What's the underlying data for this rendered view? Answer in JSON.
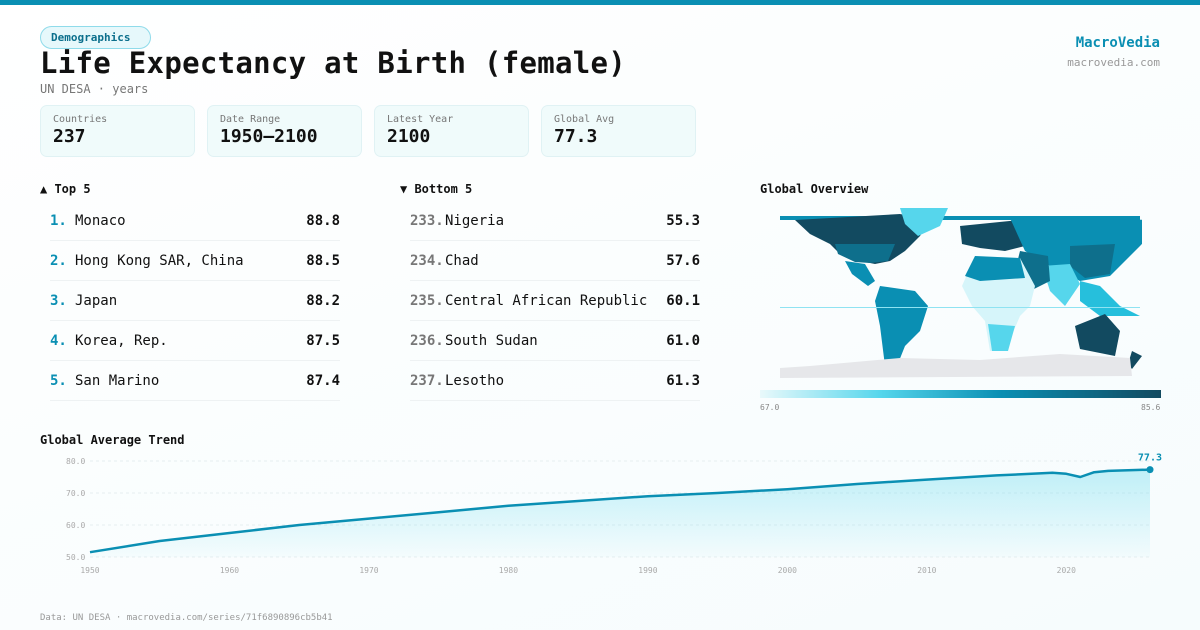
{
  "header": {
    "badge": "Demographics",
    "title": "Life Expectancy at Birth (female)",
    "subtitle": "UN DESA · years",
    "brand": "MacroVedia",
    "brand_url": "macrovedia.com"
  },
  "stats": [
    {
      "label": "Countries",
      "value": "237"
    },
    {
      "label": "Date Range",
      "value": "1950–2100"
    },
    {
      "label": "Latest Year",
      "value": "2100"
    },
    {
      "label": "Global Avg",
      "value": "77.3"
    }
  ],
  "top5": {
    "title": "▲ Top 5",
    "items": [
      {
        "rank": "1.",
        "name": "Monaco",
        "value": "88.8"
      },
      {
        "rank": "2.",
        "name": "Hong Kong SAR, China",
        "value": "88.5"
      },
      {
        "rank": "3.",
        "name": "Japan",
        "value": "88.2"
      },
      {
        "rank": "4.",
        "name": "Korea, Rep.",
        "value": "87.5"
      },
      {
        "rank": "5.",
        "name": "San Marino",
        "value": "87.4"
      }
    ]
  },
  "bottom5": {
    "title": "▼ Bottom 5",
    "items": [
      {
        "rank": "233.",
        "name": "Nigeria",
        "value": "55.3"
      },
      {
        "rank": "234.",
        "name": "Chad",
        "value": "57.6"
      },
      {
        "rank": "235.",
        "name": "Central African Republic",
        "value": "60.1"
      },
      {
        "rank": "236.",
        "name": "South Sudan",
        "value": "61.0"
      },
      {
        "rank": "237.",
        "name": "Lesotho",
        "value": "61.3"
      }
    ]
  },
  "map": {
    "title": "Global Overview",
    "legend_min": "67.0",
    "legend_max": "85.6",
    "colors": [
      "#e9f9fb",
      "#56d6ec",
      "#0a8fb3",
      "#124a60"
    ]
  },
  "chart_data": {
    "type": "area",
    "title": "Global Average Trend",
    "x": [
      1950,
      1955,
      1960,
      1965,
      1970,
      1975,
      1980,
      1985,
      1990,
      1995,
      2000,
      2005,
      2010,
      2015,
      2019,
      2020,
      2021,
      2022,
      2023,
      2026
    ],
    "values": [
      51.5,
      55.0,
      57.5,
      60.0,
      62.0,
      64.0,
      66.0,
      67.5,
      69.0,
      70.0,
      71.2,
      72.8,
      74.2,
      75.5,
      76.3,
      76.0,
      75.0,
      76.5,
      76.9,
      77.3
    ],
    "yticks": [
      "80.0",
      "70.0",
      "60.0",
      "50.0"
    ],
    "ytick_values": [
      80,
      70,
      60,
      50
    ],
    "xticks": [
      "1950",
      "1960",
      "1970",
      "1980",
      "1990",
      "2000",
      "2010",
      "2020"
    ],
    "ylim": [
      50,
      80
    ],
    "xlim": [
      1950,
      2026
    ],
    "grid": true,
    "end_label": "77.3",
    "color": "#0a8fb3"
  },
  "footer": "Data: UN DESA · macrovedia.com/series/71f6890896cb5b41"
}
